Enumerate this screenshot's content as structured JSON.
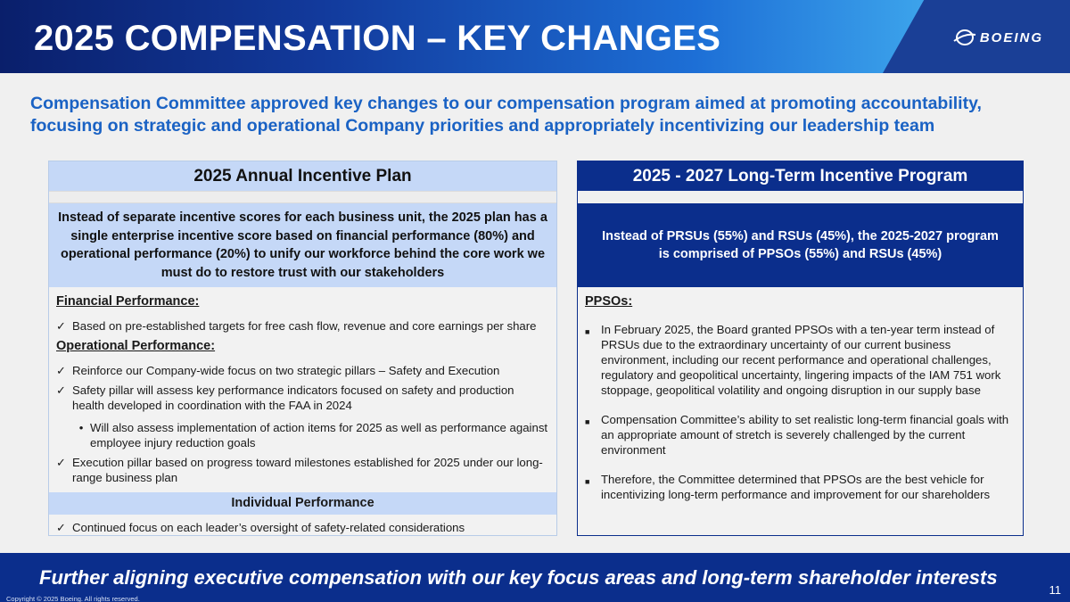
{
  "header": {
    "title": "2025 COMPENSATION – KEY CHANGES",
    "brand": "BOEING",
    "logo_icon": "boeing-logo-icon"
  },
  "intro": "Compensation Committee approved key changes to our compensation program aimed at promoting accountability, focusing on strategic and operational Company priorities and appropriately incentivizing our leadership team",
  "left": {
    "title": "2025 Annual Incentive Plan",
    "summary": "Instead of separate incentive scores for each business unit, the 2025 plan has a single enterprise incentive score based on financial performance (80%) and operational performance (20%) to unify our workforce behind the core work we must do to restore trust with our stakeholders",
    "financial_heading": "Financial Performance:",
    "financial_items": [
      "Based on pre-established targets for free cash flow, revenue and core earnings per share"
    ],
    "operational_heading": "Operational Performance:",
    "operational_item1": "Reinforce our Company-wide focus on two strategic pillars – Safety and Execution",
    "operational_item2": "Safety pillar will assess key performance indicators focused on safety and production health developed in coordination with the FAA in 2024",
    "operational_sub": "Will also assess implementation of action items for 2025 as well as performance against employee injury reduction goals",
    "operational_item3": "Execution pillar based on progress toward milestones established for 2025 under our long-range business plan",
    "individual_heading": "Individual Performance",
    "individual_item": "Continued focus on each leader’s oversight of safety-related considerations",
    "check_glyph": "✓",
    "sub_bullet_glyph": "•"
  },
  "right": {
    "title": "2025 - 2027 Long-Term Incentive Program",
    "summary": "Instead of PRSUs (55%) and RSUs (45%), the 2025-2027 program is comprised of PPSOs (55%) and RSUs (45%)",
    "ppso_heading": "PPSOs:",
    "bullets": [
      "In February 2025, the Board granted PPSOs with a ten-year term instead of PRSUs due to the extraordinary uncertainty of our current business environment, including our recent performance and operational challenges, regulatory and geopolitical uncertainty, lingering impacts of the IAM 751 work stoppage, geopolitical volatility and ongoing disruption in our supply base",
      "Compensation Committee’s ability to set realistic long-term financial goals with an appropriate amount of stretch is severely challenged by the current environment",
      "Therefore, the Committee determined that PPSOs are the best vehicle for incentivizing long-term performance and improvement for our shareholders"
    ],
    "bullet_glyph": "■"
  },
  "footer": {
    "tagline": "Further aligning executive compensation with our key focus areas and long-term shareholder interests",
    "page_number": "11",
    "copyright": "Copyright © 2025 Boeing. All rights reserved."
  }
}
